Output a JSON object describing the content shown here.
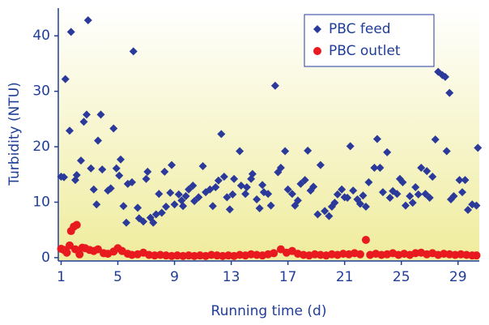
{
  "chart_data": {
    "type": "scatter",
    "xlabel": "Running time (d)",
    "ylabel": "Turbidity (NTU)",
    "xlim": [
      0.8,
      30.5
    ],
    "ylim": [
      -0.6,
      45
    ],
    "xticks": [
      1,
      5,
      9,
      13,
      17,
      21,
      25,
      29
    ],
    "yticks": [
      0,
      10,
      20,
      30,
      40
    ],
    "legend": "top-right",
    "series": [
      {
        "name": "PBC feed",
        "color": "#2b3a9a",
        "marker": "diamond",
        "x": [
          1.0,
          1.2,
          1.3,
          1.6,
          1.7,
          2.0,
          2.1,
          2.4,
          2.6,
          2.8,
          2.9,
          3.1,
          3.3,
          3.5,
          3.6,
          3.8,
          3.9,
          4.3,
          4.5,
          4.7,
          4.9,
          5.1,
          5.2,
          5.4,
          5.6,
          5.7,
          6.0,
          6.1,
          6.4,
          6.5,
          6.8,
          7.0,
          7.1,
          7.3,
          7.5,
          7.7,
          7.9,
          8.1,
          8.3,
          8.4,
          8.7,
          8.8,
          9.0,
          9.3,
          9.5,
          9.6,
          9.8,
          10.0,
          10.3,
          10.4,
          10.7,
          11.0,
          11.2,
          11.5,
          11.7,
          11.9,
          12.1,
          12.3,
          12.5,
          12.7,
          12.9,
          13.1,
          13.2,
          13.6,
          13.7,
          14.0,
          14.1,
          14.4,
          14.5,
          14.8,
          15.0,
          15.2,
          15.3,
          15.6,
          15.8,
          16.1,
          16.3,
          16.5,
          16.8,
          17.0,
          17.3,
          17.5,
          17.7,
          17.9,
          18.2,
          18.4,
          18.6,
          18.8,
          19.1,
          19.3,
          19.6,
          19.9,
          20.1,
          20.3,
          20.5,
          20.8,
          21.0,
          21.2,
          21.4,
          21.6,
          21.9,
          22.1,
          22.3,
          22.5,
          22.7,
          23.1,
          23.3,
          23.5,
          23.7,
          24.0,
          24.2,
          24.4,
          24.7,
          24.9,
          25.1,
          25.3,
          25.6,
          25.8,
          26.0,
          26.2,
          26.4,
          26.7,
          26.8,
          27.0,
          27.2,
          27.4,
          27.6,
          27.9,
          28.1,
          28.2,
          28.4,
          28.5,
          28.7,
          29.1,
          29.3,
          29.5,
          29.7,
          30.0,
          30.3,
          30.4
        ],
        "values": [
          14.6,
          14.5,
          32.2,
          22.9,
          40.7,
          14.0,
          14.9,
          17.5,
          24.5,
          25.8,
          42.8,
          16.1,
          12.3,
          9.6,
          21.1,
          25.8,
          15.9,
          12.1,
          12.5,
          23.3,
          16.1,
          14.8,
          17.7,
          9.3,
          6.3,
          13.3,
          13.6,
          37.2,
          9.0,
          7.1,
          6.5,
          14.2,
          15.5,
          7.2,
          6.3,
          7.8,
          11.5,
          8.1,
          15.5,
          9.2,
          11.7,
          16.7,
          9.6,
          11.4,
          10.3,
          9.3,
          11.1,
          12.3,
          13.0,
          10.2,
          10.9,
          16.5,
          11.8,
          12.3,
          9.3,
          12.7,
          13.9,
          22.3,
          14.6,
          10.9,
          8.7,
          11.4,
          14.2,
          19.2,
          13.0,
          11.5,
          12.7,
          14.2,
          15.1,
          10.5,
          8.9,
          13.1,
          11.8,
          11.5,
          9.4,
          31.0,
          15.4,
          16.2,
          19.2,
          12.3,
          11.5,
          9.4,
          10.3,
          13.3,
          14.0,
          19.3,
          12.1,
          12.8,
          7.8,
          16.7,
          8.4,
          7.5,
          9.2,
          9.9,
          11.4,
          12.3,
          10.9,
          10.8,
          20.1,
          12.1,
          10.5,
          9.7,
          11.2,
          9.2,
          13.6,
          16.2,
          21.4,
          16.2,
          11.8,
          19.0,
          10.8,
          12.0,
          11.5,
          14.2,
          13.6,
          9.4,
          11.1,
          9.9,
          12.7,
          11.4,
          16.2,
          11.5,
          15.6,
          10.8,
          14.6,
          21.3,
          33.5,
          32.9,
          32.6,
          19.2,
          29.7,
          10.5,
          11.1,
          14.0,
          11.8,
          14.0,
          8.6,
          9.6,
          9.4,
          19.8
        ]
      },
      {
        "name": "PBC outlet",
        "color": "#e8191f",
        "marker": "circle",
        "x": [
          1.0,
          1.2,
          1.4,
          1.6,
          1.7,
          1.9,
          2.1,
          2.0,
          2.3,
          2.5,
          2.7,
          3.0,
          3.3,
          3.6,
          4.0,
          4.3,
          4.7,
          5.0,
          5.3,
          5.7,
          6.0,
          6.4,
          6.8,
          7.2,
          7.6,
          8.0,
          8.4,
          8.8,
          9.2,
          9.6,
          10.0,
          10.4,
          10.8,
          11.2,
          11.6,
          12.0,
          12.4,
          12.8,
          13.2,
          13.6,
          14.0,
          14.4,
          14.8,
          15.2,
          15.6,
          16.0,
          16.5,
          16.9,
          17.3,
          17.7,
          18.1,
          18.5,
          18.9,
          19.3,
          19.7,
          20.1,
          20.5,
          20.9,
          21.3,
          21.7,
          22.1,
          22.5,
          22.8,
          23.2,
          23.6,
          24.0,
          24.4,
          24.8,
          25.2,
          25.6,
          26.0,
          26.4,
          26.8,
          27.2,
          27.6,
          28.0,
          28.4,
          28.8,
          29.2,
          29.6,
          30.0,
          30.3
        ],
        "values": [
          1.6,
          1.4,
          0.9,
          2.2,
          4.8,
          5.6,
          5.9,
          1.5,
          0.6,
          1.8,
          1.7,
          1.4,
          1.2,
          1.5,
          0.8,
          0.7,
          1.1,
          1.7,
          1.2,
          0.7,
          0.5,
          0.6,
          0.9,
          0.5,
          0.4,
          0.5,
          0.4,
          0.3,
          0.4,
          0.3,
          0.4,
          0.3,
          0.4,
          0.3,
          0.5,
          0.4,
          0.3,
          0.4,
          0.3,
          0.5,
          0.4,
          0.6,
          0.5,
          0.4,
          0.6,
          0.8,
          1.5,
          0.9,
          1.2,
          0.7,
          0.5,
          0.4,
          0.6,
          0.5,
          0.4,
          0.6,
          0.5,
          0.7,
          0.6,
          0.8,
          0.6,
          3.2,
          0.5,
          0.7,
          0.5,
          0.6,
          0.8,
          0.5,
          0.7,
          0.5,
          0.8,
          0.9,
          0.6,
          0.8,
          0.5,
          0.7,
          0.6,
          0.5,
          0.6,
          0.5,
          0.4,
          0.4
        ]
      }
    ]
  }
}
